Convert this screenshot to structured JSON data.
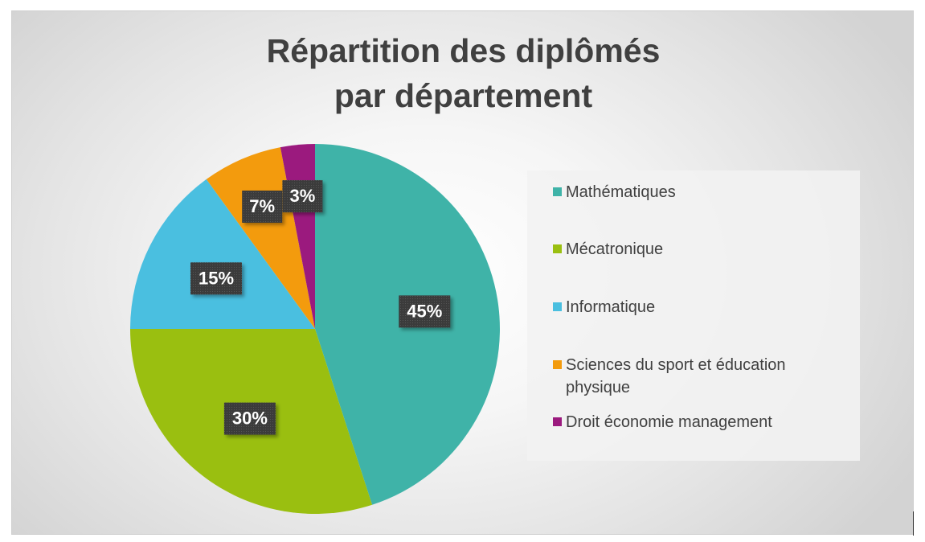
{
  "chart_data": {
    "type": "pie",
    "title_lines": [
      "Répartition des diplômés",
      "par département"
    ],
    "categories": [
      "Mathématiques",
      "Mécatronique",
      "Informatique",
      "Sciences du sport et éducation physique",
      "Droit économie management"
    ],
    "values": [
      45,
      30,
      15,
      7,
      3
    ],
    "data_labels": [
      "45%",
      "30%",
      "15%",
      "7%",
      "3%"
    ],
    "colors": [
      "#3fb3a8",
      "#9abf10",
      "#4abfe0",
      "#f39b0d",
      "#9b1a7e"
    ],
    "legend_position": "right"
  },
  "legend_lines": [
    [
      "Mathématiques"
    ],
    [
      "Mécatronique"
    ],
    [
      "Informatique"
    ],
    [
      "Sciences du sport et éducation",
      "physique"
    ],
    [
      "Droit économie management"
    ]
  ]
}
